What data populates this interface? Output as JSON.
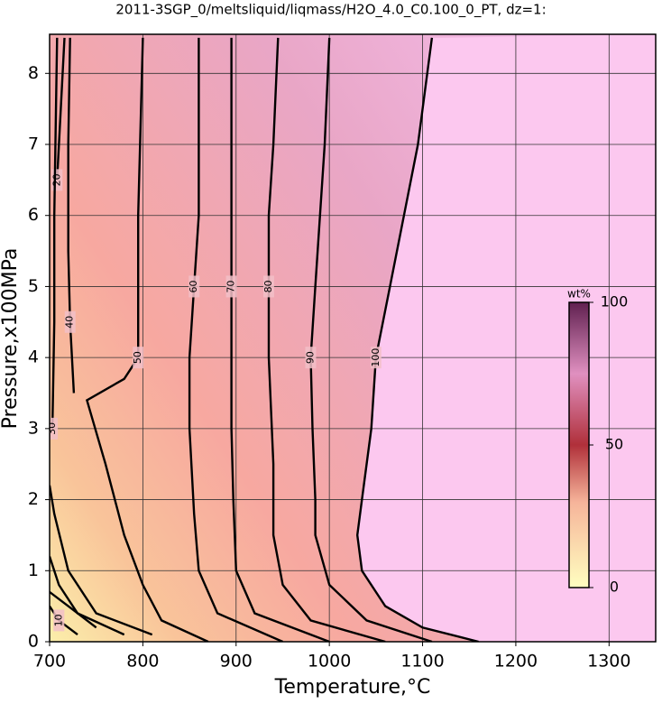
{
  "chart_data": {
    "type": "contour",
    "title": "2011-3SGP_0/meltsliquid/liqmass/H2O_4.0_C0.100_0_PT, dz=1:",
    "xlabel": "Temperature,°C",
    "ylabel": "Pressure,x100MPa",
    "xlim": [
      700,
      1350
    ],
    "ylim": [
      0,
      8.55
    ],
    "xticks": [
      700,
      800,
      900,
      1000,
      1100,
      1200,
      1300
    ],
    "yticks": [
      0,
      1,
      2,
      3,
      4,
      5,
      6,
      7,
      8
    ],
    "grid": true,
    "colorbar": {
      "label": "wt%",
      "lim": [
        0,
        100
      ],
      "ticks": [
        0,
        50,
        100
      ]
    },
    "contours": [
      {
        "level": 10,
        "x": [
          730,
          710,
          700
        ],
        "y": [
          0.1,
          0.3,
          0.5
        ]
      },
      {
        "level": 20,
        "x": [
          750,
          720,
          700,
          null,
          708,
          712,
          716
        ],
        "y": [
          0.2,
          0.5,
          0.7,
          null,
          6.5,
          7.5,
          8.5
        ]
      },
      {
        "level": 30,
        "x": [
          780,
          730,
          710,
          700,
          null,
          703,
          705,
          705,
          708
        ],
        "y": [
          0.1,
          0.4,
          0.8,
          1.2,
          null,
          3,
          4.5,
          6,
          8.5
        ]
      },
      {
        "level": 40,
        "x": [
          810,
          750,
          720,
          705,
          700,
          null,
          726,
          722,
          720,
          720,
          722
        ],
        "y": [
          0.1,
          0.4,
          1,
          1.8,
          2.2,
          null,
          3.5,
          4.5,
          5.5,
          7,
          8.5
        ]
      },
      {
        "level": 50,
        "x": [
          870,
          820,
          800,
          780,
          760,
          740,
          780,
          795,
          795,
          795,
          797,
          800
        ],
        "y": [
          0,
          0.3,
          0.8,
          1.5,
          2.5,
          3.4,
          3.7,
          4,
          5,
          6,
          7,
          8.5
        ]
      },
      {
        "level": 60,
        "x": [
          950,
          880,
          860,
          855,
          850,
          850,
          855,
          860,
          860,
          860
        ],
        "y": [
          0,
          0.4,
          1,
          1.8,
          3,
          4,
          5,
          6,
          7,
          8.5
        ]
      },
      {
        "level": 70,
        "x": [
          1000,
          920,
          900,
          897,
          895,
          895,
          895,
          895,
          895,
          895
        ],
        "y": [
          0,
          0.4,
          1,
          2,
          3,
          4,
          5,
          6,
          7,
          8.5
        ]
      },
      {
        "level": 80,
        "x": [
          1060,
          980,
          950,
          940,
          940,
          935,
          935,
          935,
          940,
          945
        ],
        "y": [
          0,
          0.3,
          0.8,
          1.5,
          2.5,
          4,
          5,
          6,
          7,
          8.5
        ]
      },
      {
        "level": 90,
        "x": [
          1110,
          1040,
          1000,
          985,
          985,
          982,
          980,
          985,
          990,
          995,
          1000
        ],
        "y": [
          0,
          0.3,
          0.8,
          1.5,
          2,
          3,
          4,
          5,
          6,
          7,
          8.5
        ]
      },
      {
        "level": 100,
        "x": [
          1160,
          1100,
          1060,
          1035,
          1030,
          1035,
          1045,
          1050,
          1065,
          1080,
          1095,
          1110
        ],
        "y": [
          0,
          0.2,
          0.5,
          1,
          1.5,
          2,
          3,
          4,
          5,
          6,
          7,
          8.5
        ]
      }
    ]
  }
}
